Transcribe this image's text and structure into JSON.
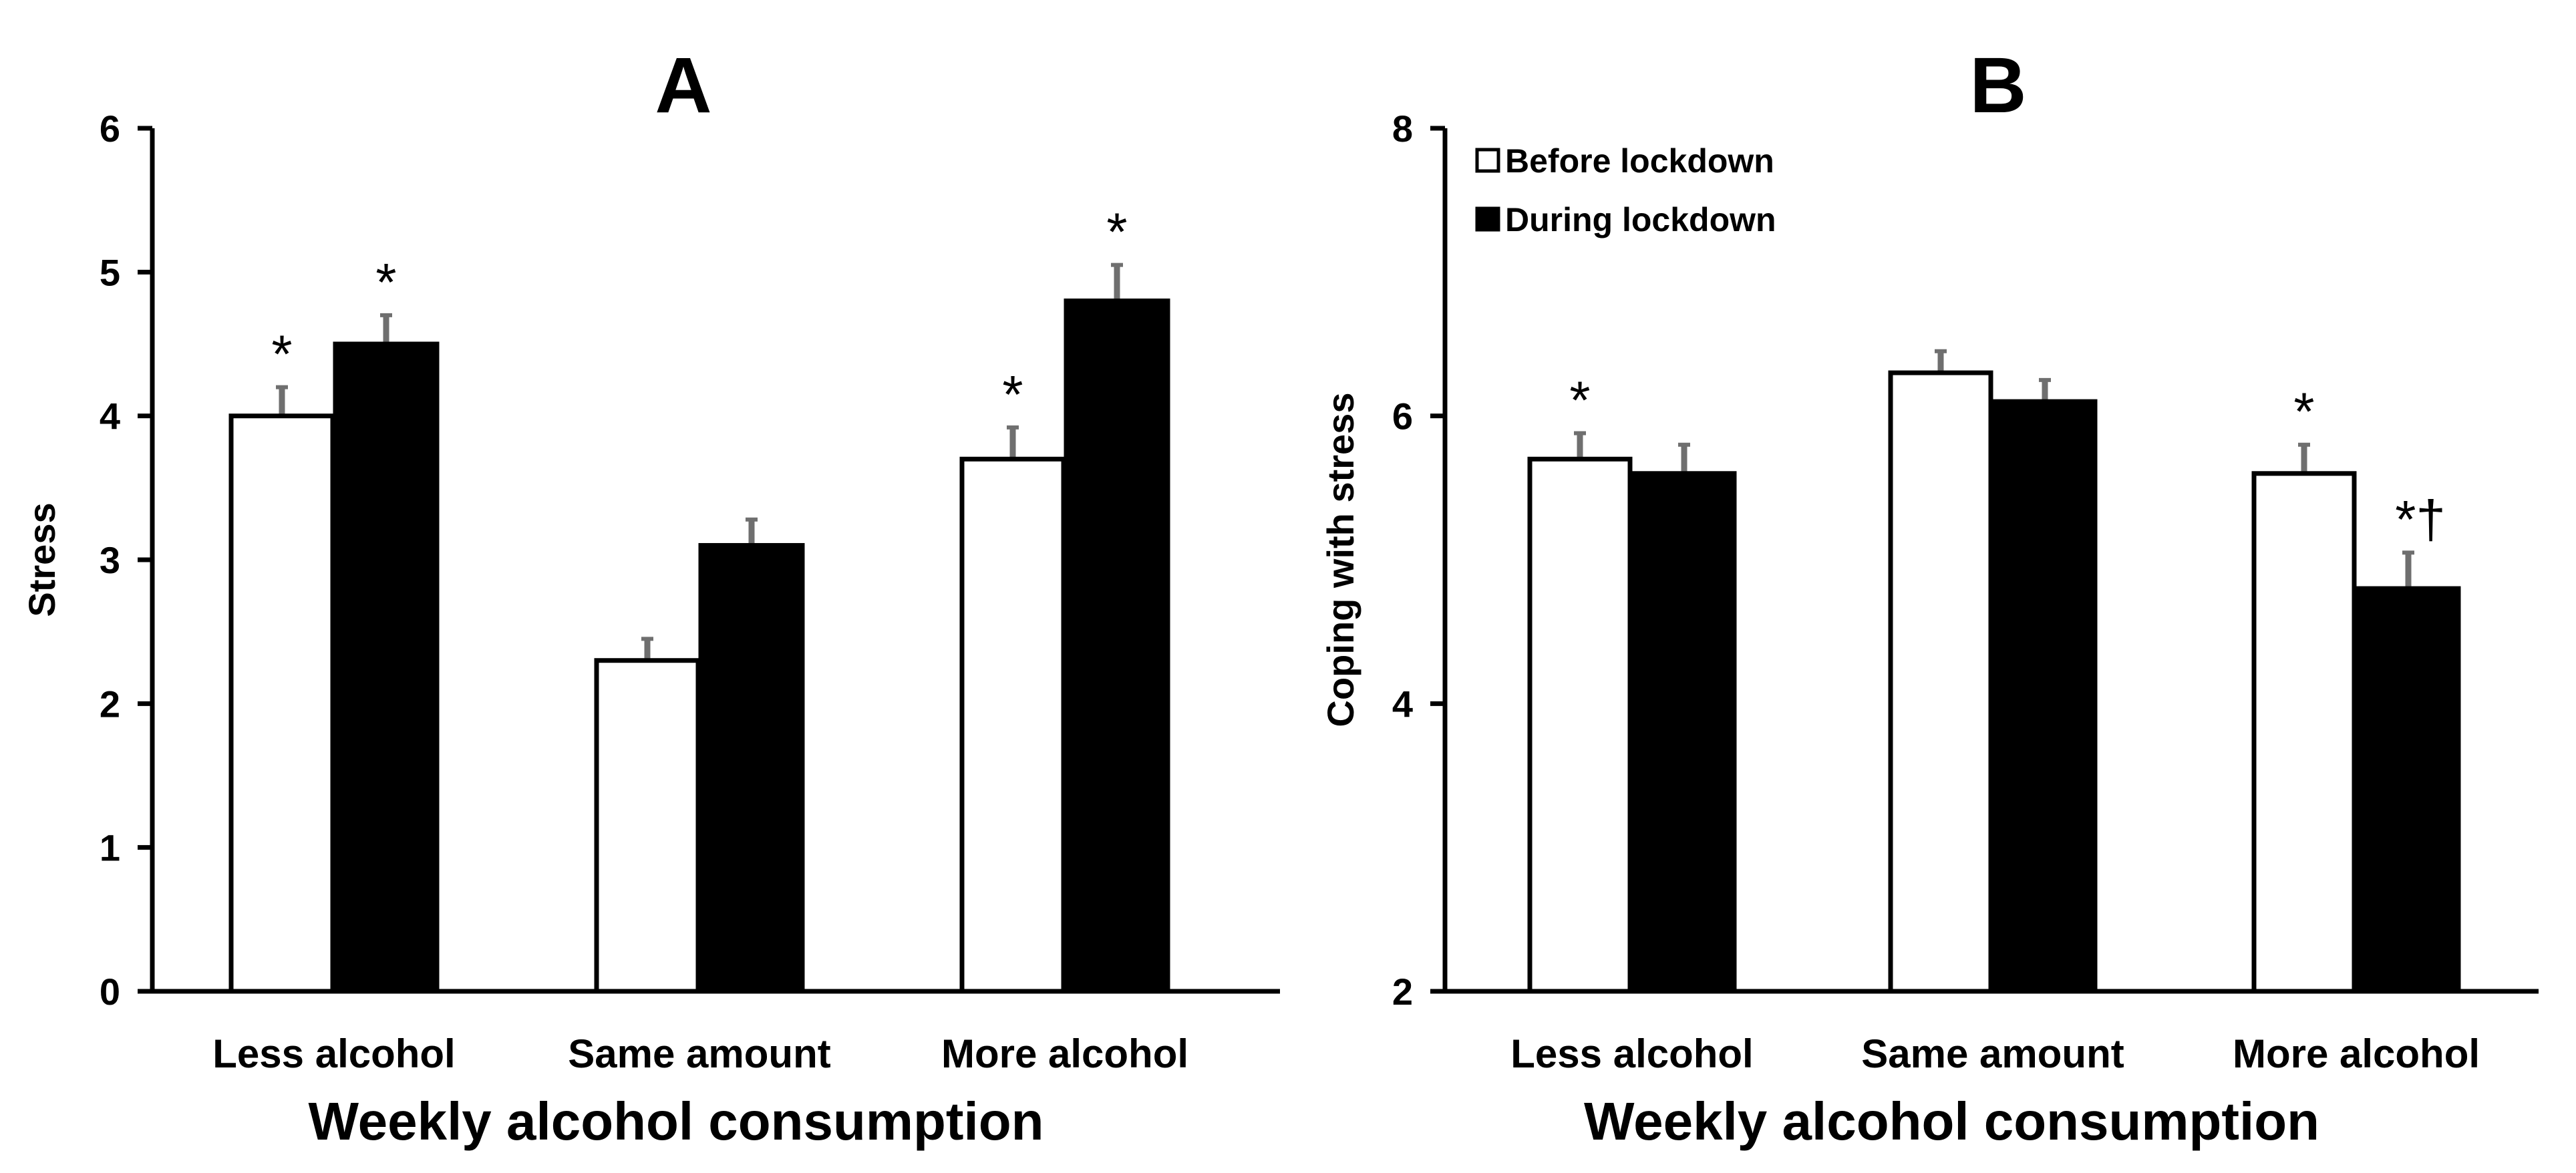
{
  "chart_data": [
    {
      "type": "bar",
      "panel": "A",
      "title": "A",
      "xlabel": "Weekly alcohol consumption",
      "ylabel": "Stress",
      "ylim": [
        0,
        6
      ],
      "yticks": [
        0,
        1,
        2,
        3,
        4,
        5,
        6
      ],
      "categories": [
        "Less alcohol",
        "Same amount",
        "More alcohol"
      ],
      "series": [
        {
          "name": "Before lockdown",
          "color": "#ffffff",
          "values": [
            4.0,
            2.3,
            3.7
          ],
          "errors": [
            0.2,
            0.15,
            0.22
          ],
          "annotations": [
            "*",
            "",
            "*"
          ]
        },
        {
          "name": "During lockdown",
          "color": "#000000",
          "values": [
            4.5,
            3.1,
            4.8
          ],
          "errors": [
            0.2,
            0.18,
            0.25
          ],
          "annotations": [
            "*",
            "",
            "*"
          ]
        }
      ]
    },
    {
      "type": "bar",
      "panel": "B",
      "title": "B",
      "xlabel": "Weekly alcohol consumption",
      "ylabel": "Coping with stress",
      "ylim": [
        2,
        8
      ],
      "yticks": [
        2,
        4,
        6,
        8
      ],
      "categories": [
        "Less alcohol",
        "Same amount",
        "More alcohol"
      ],
      "legend": {
        "position": "top-left",
        "entries": [
          "Before lockdown",
          "During lockdown"
        ]
      },
      "series": [
        {
          "name": "Before lockdown",
          "color": "#ffffff",
          "values": [
            5.7,
            6.3,
            5.6
          ],
          "errors": [
            0.18,
            0.15,
            0.2
          ],
          "annotations": [
            "*",
            "",
            "*"
          ]
        },
        {
          "name": "During lockdown",
          "color": "#000000",
          "values": [
            5.6,
            6.1,
            4.8
          ],
          "errors": [
            0.2,
            0.15,
            0.25
          ],
          "annotations": [
            "",
            "",
            "*†"
          ]
        }
      ]
    }
  ]
}
